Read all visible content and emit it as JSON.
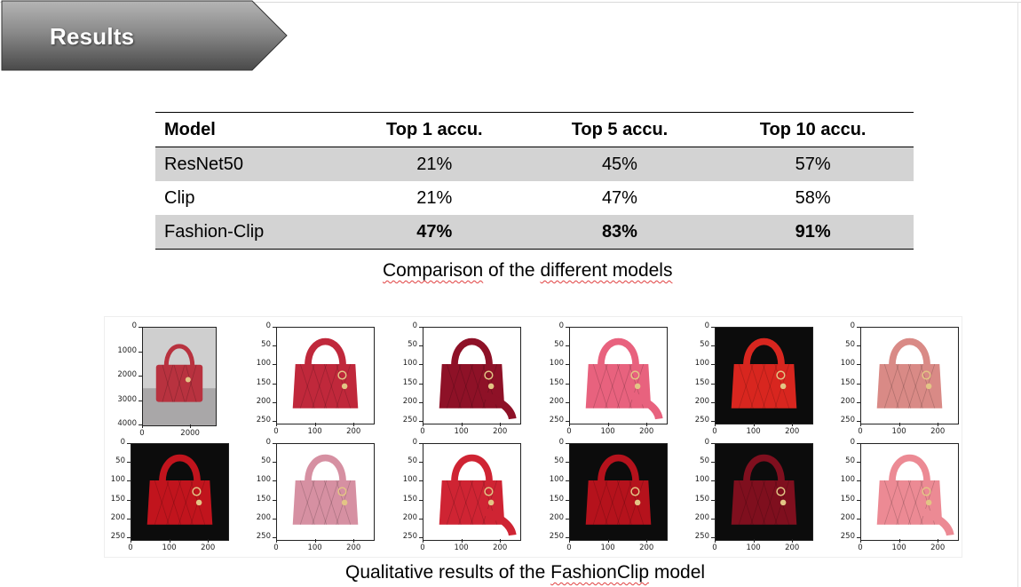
{
  "slide": {
    "title": "Results"
  },
  "table": {
    "headers": [
      "Model",
      "Top 1 accu.",
      "Top 5 accu.",
      "Top 10 accu."
    ],
    "rows": [
      {
        "model": "ResNet50",
        "top1": "21%",
        "top5": "45%",
        "top10": "57%"
      },
      {
        "model": "Clip",
        "top1": "21%",
        "top5": "47%",
        "top10": "58%"
      },
      {
        "model": "Fashion-Clip",
        "top1": "47%",
        "top5": "83%",
        "top10": "91%"
      }
    ],
    "caption_pre": "Comparison of the ",
    "caption_squiggle": "different models",
    "caption_squiggle_a": "Comparison",
    "caption_mid": " of the ",
    "caption_squiggle_b": "different models"
  },
  "figure": {
    "caption_pre": "Qualitative results of the ",
    "caption_word": "FashionClip",
    "caption_post": " model",
    "query_axis": {
      "y_ticks": [
        "0",
        "1000",
        "2000",
        "3000",
        "4000"
      ],
      "x_ticks": [
        "0",
        "2000"
      ]
    },
    "result_axis": {
      "y_ticks": [
        "0",
        "50",
        "100",
        "150",
        "200",
        "250"
      ],
      "x_ticks": [
        "0",
        "100",
        "200"
      ]
    },
    "colors": {
      "query_bag": "#b8323f",
      "results_top": [
        "#c0283b",
        "#8e1127",
        "#e8627e",
        "#d8261f",
        "#d98a86"
      ],
      "results_bottom": [
        "#c1141d",
        "#d690a2",
        "#cf2433",
        "#b5121c",
        "#7f0f1e",
        "#ec8a94"
      ],
      "dark_backgrounds_top": [
        false,
        false,
        false,
        true,
        false
      ],
      "dark_backgrounds_bottom": [
        true,
        false,
        false,
        true,
        true,
        false
      ]
    }
  }
}
